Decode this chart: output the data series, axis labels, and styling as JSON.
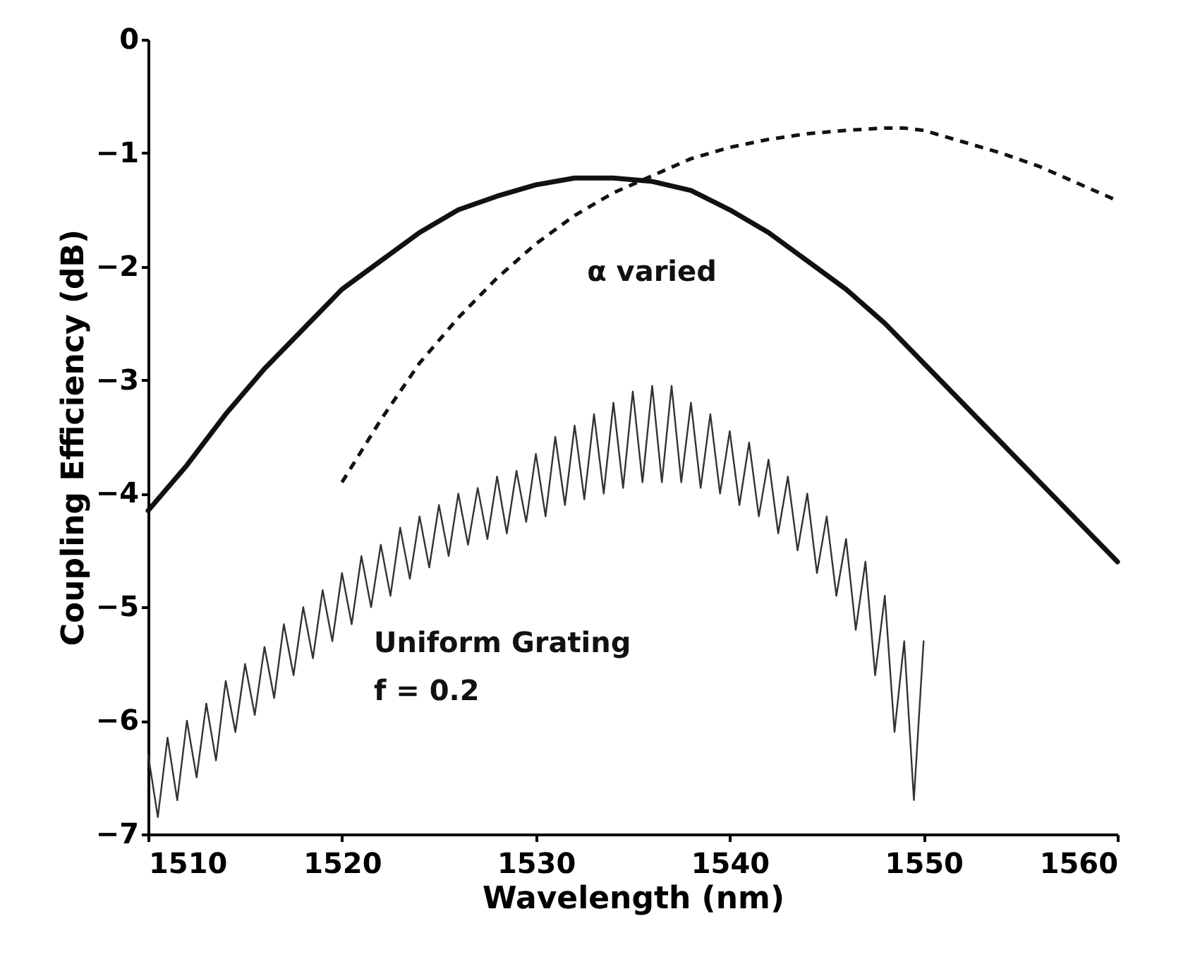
{
  "chart_data": {
    "type": "line",
    "xlabel": "Wavelength (nm)",
    "ylabel": "Coupling Efficiency (dB)",
    "xlim": [
      1510,
      1560
    ],
    "xticks": [
      1510,
      1520,
      1530,
      1540,
      1550,
      1560
    ],
    "ylim": [
      -7,
      0
    ],
    "yticks": [
      -7,
      -6,
      -5,
      -4,
      -3,
      -2,
      -1,
      0
    ],
    "grid": false,
    "marker": "none",
    "series": [
      {
        "color": "#111111",
        "line_style": "solid",
        "x": [
          1510,
          1512,
          1514,
          1516,
          1518,
          1520,
          1522,
          1524,
          1526,
          1528,
          1530,
          1532,
          1534,
          1536,
          1538,
          1540,
          1542,
          1544,
          1546,
          1548,
          1550,
          1552,
          1554,
          1556,
          1558,
          1560
        ],
        "values": [
          -4.15,
          -3.75,
          -3.3,
          -2.9,
          -2.55,
          -2.2,
          -1.95,
          -1.7,
          -1.5,
          -1.38,
          -1.28,
          -1.22,
          -1.22,
          -1.25,
          -1.33,
          -1.5,
          -1.7,
          -1.95,
          -2.2,
          -2.5,
          -2.85,
          -3.2,
          -3.55,
          -3.9,
          -4.25,
          -4.6
        ]
      },
      {
        "color": "#111111",
        "line_style": "dashed",
        "x": [
          1520,
          1522,
          1524,
          1526,
          1528,
          1530,
          1532,
          1534,
          1536,
          1538,
          1540,
          1542,
          1544,
          1546,
          1548,
          1549,
          1550,
          1552,
          1554,
          1556,
          1558,
          1560
        ],
        "values": [
          -3.9,
          -3.35,
          -2.85,
          -2.45,
          -2.1,
          -1.8,
          -1.55,
          -1.35,
          -1.2,
          -1.05,
          -0.95,
          -0.88,
          -0.83,
          -0.8,
          -0.78,
          -0.78,
          -0.8,
          -0.9,
          -1.0,
          -1.12,
          -1.27,
          -1.42
        ]
      },
      {
        "color": "#333333",
        "line_style": "solid",
        "x": [
          1510,
          1510.5,
          1511,
          1511.5,
          1512,
          1512.5,
          1513,
          1513.5,
          1514,
          1514.5,
          1515,
          1515.5,
          1516,
          1516.5,
          1517,
          1517.5,
          1518,
          1518.5,
          1519,
          1519.5,
          1520,
          1520.5,
          1521,
          1521.5,
          1522,
          1522.5,
          1523,
          1523.5,
          1524,
          1524.5,
          1525,
          1525.5,
          1526,
          1526.5,
          1527,
          1527.5,
          1528,
          1528.5,
          1529,
          1529.5,
          1530,
          1530.5,
          1531,
          1531.5,
          1532,
          1532.5,
          1533,
          1533.5,
          1534,
          1534.5,
          1535,
          1535.5,
          1536,
          1536.5,
          1537,
          1537.5,
          1538,
          1538.5,
          1539,
          1539.5,
          1540,
          1540.5,
          1541,
          1541.5,
          1542,
          1542.5,
          1543,
          1543.5,
          1544,
          1544.5,
          1545,
          1545.5,
          1546,
          1546.5,
          1547,
          1547.5,
          1548,
          1548.5,
          1549,
          1549.5,
          1550
        ],
        "values": [
          -6.3,
          -6.85,
          -6.15,
          -6.7,
          -6.0,
          -6.5,
          -5.85,
          -6.35,
          -5.65,
          -6.1,
          -5.5,
          -5.95,
          -5.35,
          -5.8,
          -5.15,
          -5.6,
          -5.0,
          -5.45,
          -4.85,
          -5.3,
          -4.7,
          -5.15,
          -4.55,
          -5.0,
          -4.45,
          -4.9,
          -4.3,
          -4.75,
          -4.2,
          -4.65,
          -4.1,
          -4.55,
          -4.0,
          -4.45,
          -3.95,
          -4.4,
          -3.85,
          -4.35,
          -3.8,
          -4.25,
          -3.65,
          -4.2,
          -3.5,
          -4.1,
          -3.4,
          -4.05,
          -3.3,
          -4.0,
          -3.2,
          -3.95,
          -3.1,
          -3.9,
          -3.05,
          -3.9,
          -3.05,
          -3.9,
          -3.2,
          -3.95,
          -3.3,
          -4.0,
          -3.45,
          -4.1,
          -3.55,
          -4.2,
          -3.7,
          -4.35,
          -3.85,
          -4.5,
          -4.0,
          -4.7,
          -4.2,
          -4.9,
          -4.4,
          -5.2,
          -4.6,
          -5.6,
          -4.9,
          -6.1,
          -5.3,
          -6.7,
          -5.3
        ]
      }
    ],
    "annotations": [
      "α varied",
      "Uniform Grating",
      "f = 0.2"
    ]
  }
}
